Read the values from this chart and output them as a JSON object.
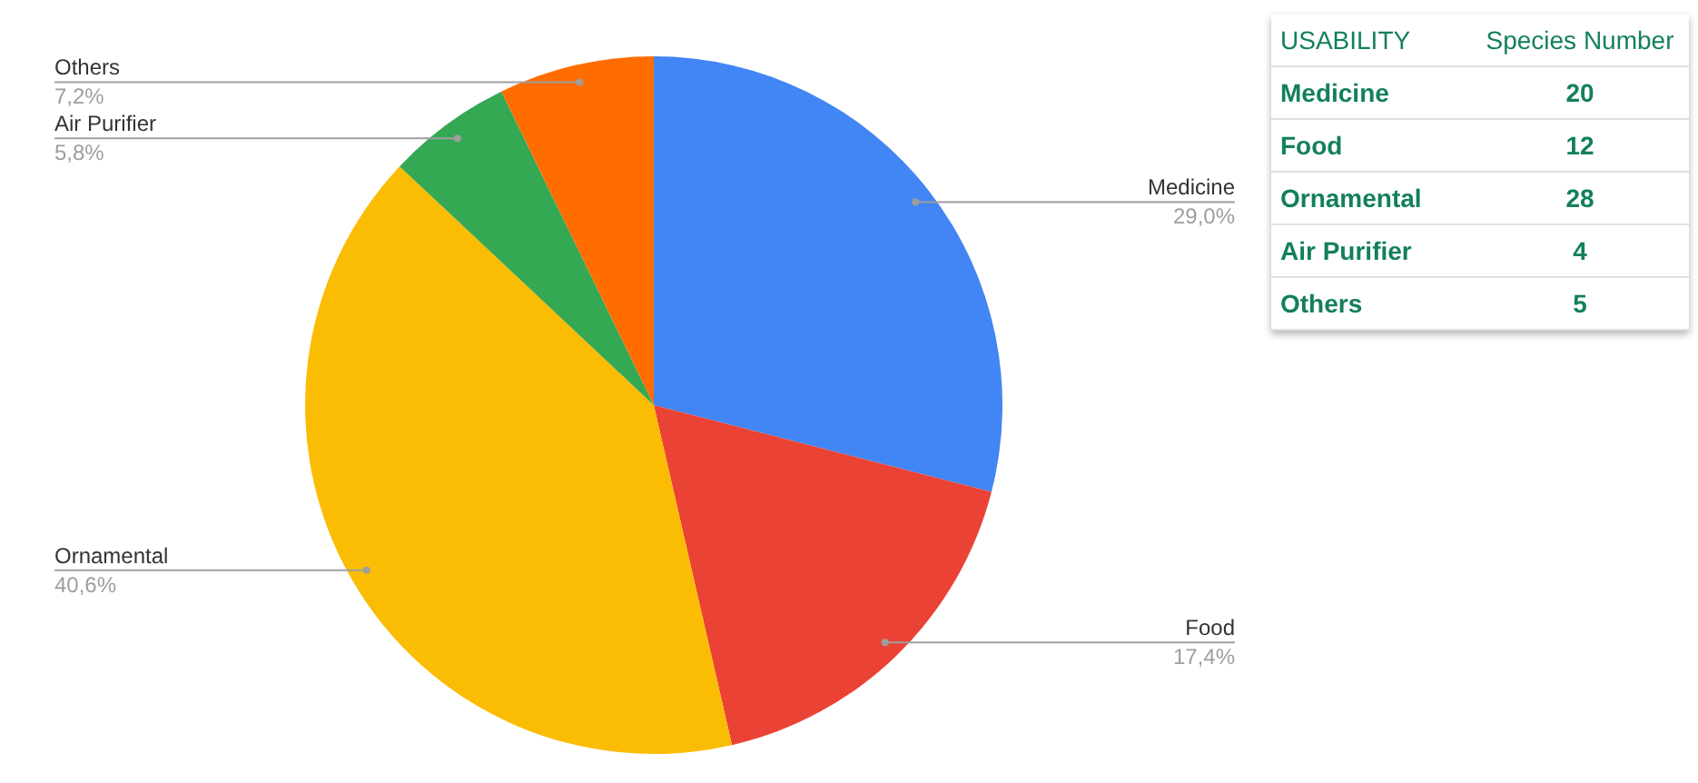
{
  "chart_data": [
    {
      "type": "pie",
      "categories": [
        "Medicine",
        "Food",
        "Ornamental",
        "Air Purifier",
        "Others"
      ],
      "values": [
        29.0,
        17.4,
        40.6,
        5.8,
        7.2
      ],
      "colors": [
        "#4285f4",
        "#ea4335",
        "#fbbc04",
        "#34a853",
        "#ff6d01"
      ],
      "value_labels": [
        "29,0%",
        "17,4%",
        "40,6%",
        "5,8%",
        "7,2%"
      ]
    },
    {
      "type": "other",
      "categories": [
        "Medicine",
        "Food",
        "Ornamental",
        "Air Purifier",
        "Others"
      ],
      "values": [
        20,
        12,
        28,
        4,
        5
      ],
      "data_labels": true,
      "annotations": [
        "USABILITY",
        "Species Number"
      ]
    }
  ]
}
